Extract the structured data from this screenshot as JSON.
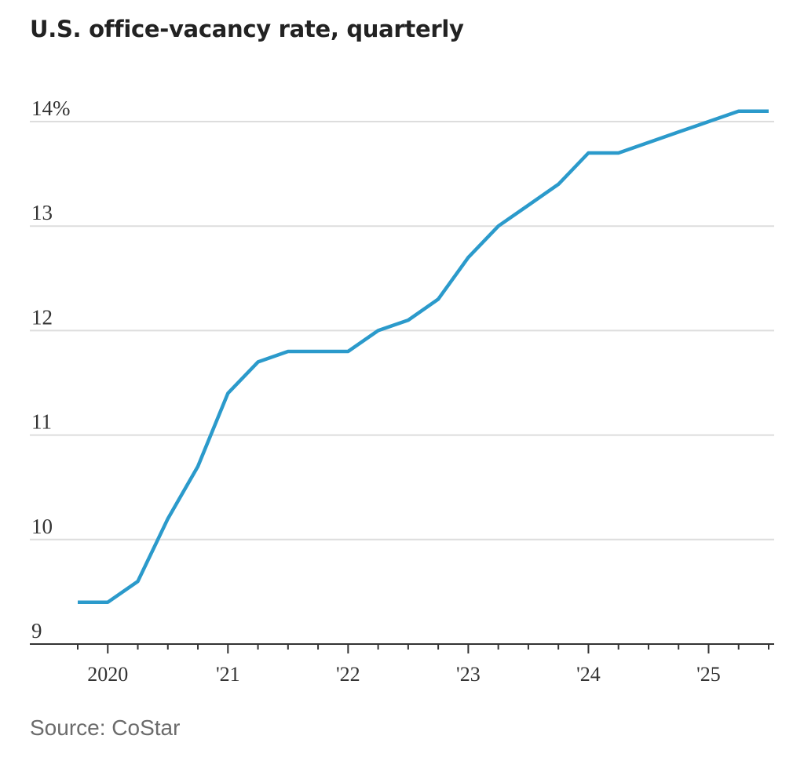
{
  "title": "U.S. office-vacancy rate, quarterly",
  "source": "Source: CoStar",
  "colors": {
    "line": "#2b9acb",
    "grid": "#dddddd",
    "axis": "#333333"
  },
  "chart_data": {
    "type": "line",
    "title": "U.S. office-vacancy rate, quarterly",
    "xlabel": "",
    "ylabel": "",
    "ylim": [
      9,
      14.2
    ],
    "xlim": [
      2019.75,
      2025.5
    ],
    "grid": true,
    "y_ticks": [
      {
        "value": 14,
        "label": "14%"
      },
      {
        "value": 13,
        "label": "13"
      },
      {
        "value": 12,
        "label": "12"
      },
      {
        "value": 11,
        "label": "11"
      },
      {
        "value": 10,
        "label": "10"
      },
      {
        "value": 9,
        "label": "9"
      }
    ],
    "x_ticks": [
      {
        "value": 2020,
        "label": "2020"
      },
      {
        "value": 2021,
        "label": "'21"
      },
      {
        "value": 2022,
        "label": "'22"
      },
      {
        "value": 2023,
        "label": "'23"
      },
      {
        "value": 2024,
        "label": "'24"
      },
      {
        "value": 2025,
        "label": "'25"
      }
    ],
    "series": [
      {
        "x": [
          "2019 Q4",
          "2020 Q1",
          "2020 Q2",
          "2020 Q3",
          "2020 Q4",
          "2021 Q1",
          "2021 Q2",
          "2021 Q3",
          "2021 Q4",
          "2022 Q1",
          "2022 Q2",
          "2022 Q3",
          "2022 Q4",
          "2023 Q1",
          "2023 Q2",
          "2023 Q3",
          "2023 Q4",
          "2024 Q1",
          "2024 Q2",
          "2024 Q3",
          "2024 Q4",
          "2025 Q1",
          "2025 Q2",
          "2025 Q3"
        ],
        "t": [
          2019.75,
          2020.0,
          2020.25,
          2020.5,
          2020.75,
          2021.0,
          2021.25,
          2021.5,
          2021.75,
          2022.0,
          2022.25,
          2022.5,
          2022.75,
          2023.0,
          2023.25,
          2023.5,
          2023.75,
          2024.0,
          2024.25,
          2024.5,
          2024.75,
          2025.0,
          2025.25,
          2025.5
        ],
        "values": [
          9.4,
          9.4,
          9.6,
          10.2,
          10.7,
          11.4,
          11.7,
          11.8,
          11.8,
          11.8,
          12.0,
          12.1,
          12.3,
          12.7,
          13.0,
          13.2,
          13.4,
          13.7,
          13.7,
          13.8,
          13.9,
          14.0,
          14.1,
          14.1
        ]
      }
    ]
  }
}
